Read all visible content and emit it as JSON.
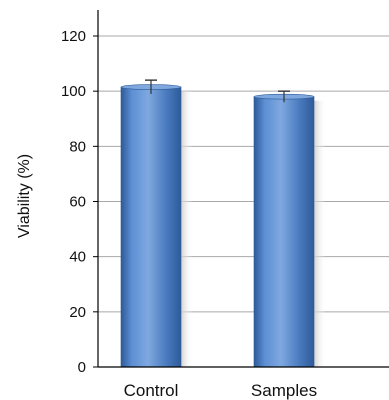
{
  "chart_data": {
    "type": "bar",
    "categories": [
      "Control",
      "Samples"
    ],
    "values": [
      101.5,
      98.0
    ],
    "errors": [
      2.5,
      2.0
    ],
    "xlabel": "",
    "ylabel": "Viability (%)",
    "ylim": [
      0,
      120
    ],
    "yticks": [
      0,
      20,
      40,
      60,
      80,
      100,
      120
    ],
    "grid": true,
    "legend": "none",
    "colors": {
      "bar": "#4a7cc0",
      "bar_light": "#7fa8df",
      "bar_dark": "#2e5a98",
      "grid": "#a8a8a8",
      "axis": "#000000"
    }
  }
}
